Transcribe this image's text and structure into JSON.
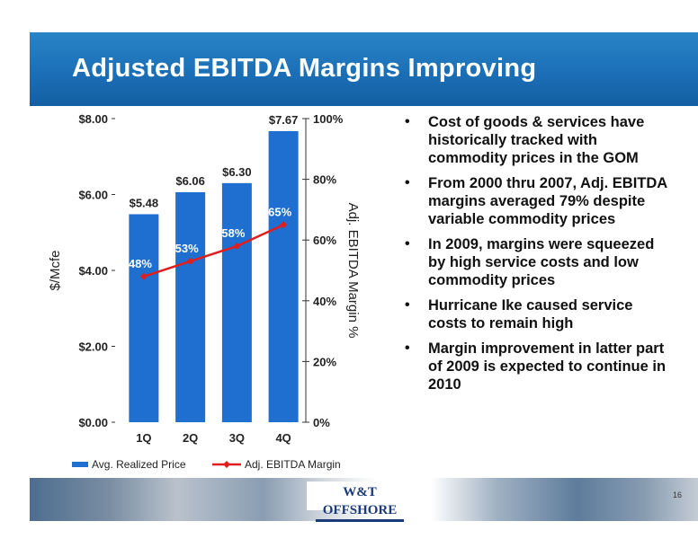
{
  "slide": {
    "title": "Adjusted EBITDA Margins Improving",
    "page_number": "16",
    "footer_logo": "W&T OFFSHORE",
    "colors": {
      "title_bar": "#1b6fb6",
      "bar": "#1f6fd1",
      "line": "#e01e1e"
    }
  },
  "bullets": [
    "Cost of goods & services have historically tracked with commodity prices in the GOM",
    "From 2000 thru 2007, Adj. EBITDA margins averaged 79% despite variable commodity prices",
    "In 2009, margins were squeezed by high service costs and low commodity prices",
    "Hurricane Ike caused service costs to remain high",
    "Margin improvement in latter part of 2009 is expected to continue in 2010"
  ],
  "chart_data": {
    "type": "bar",
    "categories": [
      "1Q",
      "2Q",
      "3Q",
      "4Q"
    ],
    "series": [
      {
        "name": "Avg. Realized Price",
        "type": "bar",
        "axis": "left",
        "values": [
          5.48,
          6.06,
          6.3,
          7.67
        ],
        "labels": [
          "$5.48",
          "$6.06",
          "$6.30",
          "$7.67"
        ]
      },
      {
        "name": "Adj. EBITDA Margin",
        "type": "line",
        "axis": "right",
        "values": [
          48,
          53,
          58,
          65
        ],
        "labels": [
          "48%",
          "53%",
          "58%",
          "65%"
        ]
      }
    ],
    "ylabel": "$/Mcfe",
    "y2label": "Adj. EBITDA Margin %",
    "ylim": [
      0,
      8
    ],
    "y2lim": [
      0,
      100
    ],
    "yticks": [
      "$0.00",
      "$2.00",
      "$4.00",
      "$6.00",
      "$8.00"
    ],
    "y2ticks": [
      "0%",
      "20%",
      "40%",
      "60%",
      "80%",
      "100%"
    ],
    "legend_position": "bottom",
    "grid": false
  }
}
